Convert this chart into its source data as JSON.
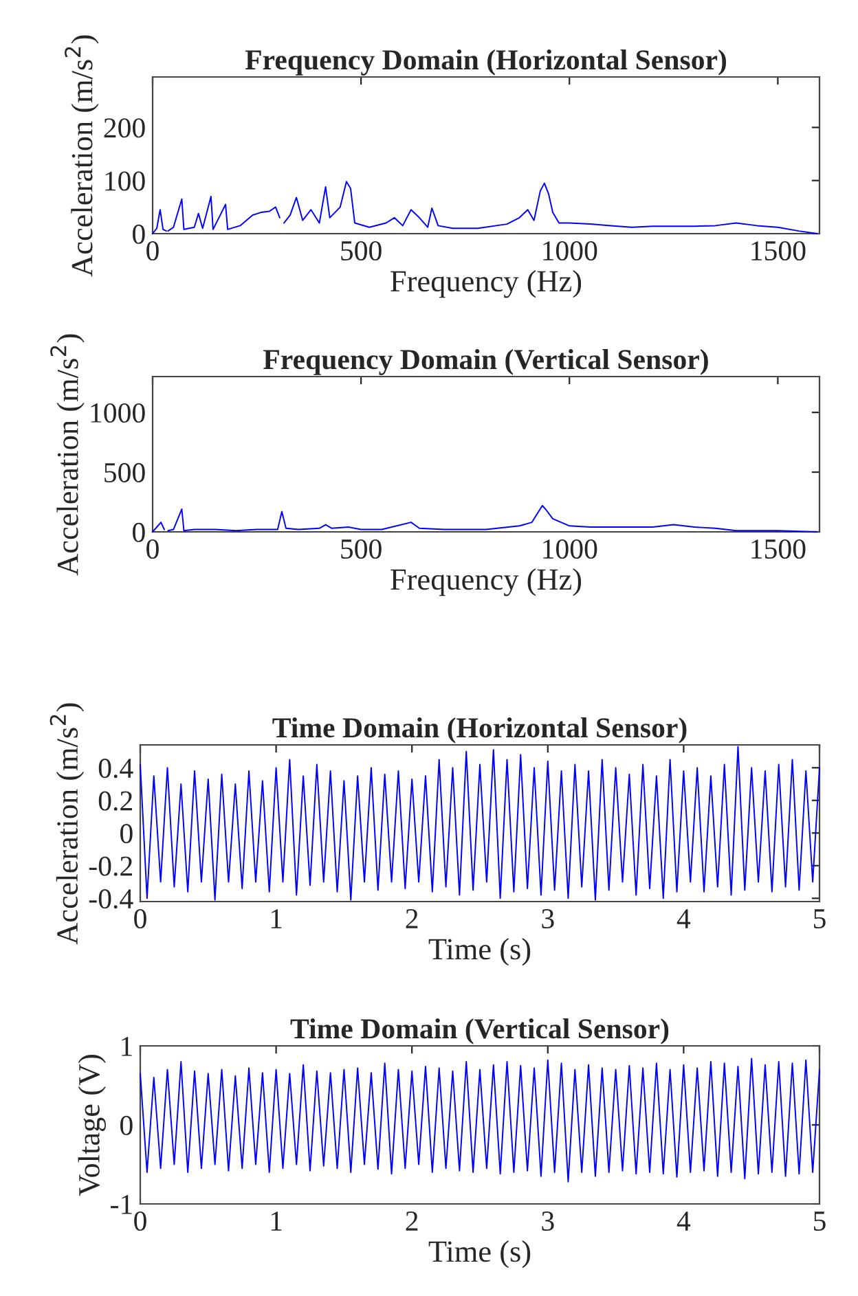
{
  "chart_data": [
    {
      "type": "line",
      "title": "Frequency Domain (Horizontal Sensor)",
      "xlabel": "Frequency (Hz)",
      "ylabel": "Acceleration (m/s$^{2}$)",
      "xlim": [
        0,
        1600
      ],
      "xticks": [
        0,
        500,
        1000,
        1500
      ],
      "ylim": [
        0,
        295
      ],
      "yticks": [
        0,
        100,
        200
      ],
      "grid": false,
      "legend": false,
      "series": [
        {
          "color": "#0000ff",
          "x": [
            0,
            10,
            18,
            25,
            33,
            35,
            37,
            50,
            70,
            75,
            100,
            110,
            120,
            140,
            145,
            175,
            180,
            210,
            240,
            260,
            280,
            295,
            305,
            310,
            315,
            330,
            345,
            360,
            380,
            400,
            415,
            425,
            450,
            465,
            475,
            485,
            520,
            560,
            580,
            600,
            620,
            640,
            660,
            670,
            685,
            720,
            780,
            850,
            880,
            900,
            915,
            930,
            940,
            950,
            960,
            975,
            1000,
            1050,
            1100,
            1150,
            1200,
            1250,
            1300,
            1350,
            1400,
            1450,
            1500,
            1550,
            1594
          ],
          "values": [
            0,
            10,
            45,
            8,
            5,
            null,
            5,
            12,
            65,
            8,
            12,
            38,
            10,
            70,
            8,
            55,
            8,
            15,
            35,
            40,
            42,
            50,
            30,
            null,
            20,
            35,
            68,
            25,
            45,
            20,
            88,
            30,
            50,
            98,
            85,
            20,
            12,
            20,
            30,
            15,
            45,
            30,
            12,
            48,
            15,
            10,
            10,
            18,
            30,
            45,
            25,
            80,
            95,
            75,
            40,
            20,
            20,
            18,
            15,
            12,
            14,
            14,
            14,
            15,
            20,
            15,
            12,
            5,
            0
          ]
        }
      ]
    },
    {
      "type": "line",
      "title": "Frequency Domain (Vertical Sensor)",
      "xlabel": "Frequency (Hz)",
      "ylabel": "Acceleration (m/s$^{2}$)",
      "xlim": [
        0,
        1600
      ],
      "xticks": [
        0,
        500,
        1000,
        1500
      ],
      "ylim": [
        0,
        1300
      ],
      "yticks": [
        0,
        500,
        1000
      ],
      "grid": false,
      "legend": false,
      "series": [
        {
          "color": "#0000ff",
          "x": [
            0,
            20,
            28,
            35,
            37,
            50,
            70,
            75,
            100,
            150,
            200,
            250,
            300,
            310,
            320,
            350,
            400,
            415,
            430,
            470,
            500,
            550,
            620,
            640,
            700,
            800,
            880,
            910,
            935,
            945,
            960,
            980,
            1000,
            1050,
            1100,
            1200,
            1250,
            1300,
            1350,
            1400,
            1500,
            1594
          ],
          "values": [
            0,
            80,
            20,
            null,
            10,
            20,
            190,
            10,
            20,
            20,
            10,
            20,
            20,
            170,
            30,
            20,
            30,
            60,
            30,
            40,
            20,
            20,
            80,
            30,
            20,
            20,
            50,
            80,
            220,
            180,
            110,
            80,
            50,
            40,
            40,
            40,
            60,
            40,
            30,
            10,
            10,
            0
          ]
        }
      ]
    },
    {
      "type": "line",
      "title": "Time Domain (Horizontal Sensor)",
      "xlabel": "Time (s)",
      "ylabel": "Acceleration (m/s$^{2}$)",
      "xlim": [
        0,
        5
      ],
      "xticks": [
        0,
        1,
        2,
        3,
        4,
        5
      ],
      "ylim": [
        -0.42,
        0.54
      ],
      "yticks": [
        -0.4,
        -0.2,
        0,
        0.2,
        0.4
      ],
      "grid": false,
      "legend": false,
      "series": [
        {
          "color": "#0000ff",
          "x": [
            0,
            0.05,
            0.1,
            0.15,
            0.2,
            0.25,
            0.3,
            0.35,
            0.4,
            0.45,
            0.5,
            0.55,
            0.6,
            0.65,
            0.7,
            0.75,
            0.8,
            0.85,
            0.9,
            0.95,
            1.0,
            1.05,
            1.1,
            1.15,
            1.2,
            1.25,
            1.3,
            1.35,
            1.4,
            1.45,
            1.5,
            1.55,
            1.6,
            1.65,
            1.7,
            1.75,
            1.8,
            1.85,
            1.9,
            1.95,
            2.0,
            2.05,
            2.1,
            2.15,
            2.2,
            2.25,
            2.3,
            2.35,
            2.4,
            2.45,
            2.5,
            2.55,
            2.6,
            2.65,
            2.7,
            2.75,
            2.8,
            2.85,
            2.9,
            2.95,
            3.0,
            3.05,
            3.1,
            3.15,
            3.2,
            3.25,
            3.3,
            3.35,
            3.4,
            3.45,
            3.5,
            3.55,
            3.6,
            3.65,
            3.7,
            3.75,
            3.8,
            3.85,
            3.9,
            3.95,
            4.0,
            4.05,
            4.1,
            4.15,
            4.2,
            4.25,
            4.3,
            4.35,
            4.4,
            4.45,
            4.5,
            4.55,
            4.6,
            4.65,
            4.7,
            4.75,
            4.8,
            4.85,
            4.9,
            4.95,
            5.0
          ],
          "values": [
            0.42,
            -0.4,
            0.35,
            -0.3,
            0.4,
            -0.33,
            0.3,
            -0.36,
            0.38,
            -0.3,
            0.33,
            -0.41,
            0.36,
            -0.3,
            0.3,
            -0.34,
            0.38,
            -0.3,
            0.32,
            -0.36,
            0.4,
            -0.3,
            0.45,
            -0.38,
            0.35,
            -0.32,
            0.42,
            -0.3,
            0.38,
            -0.36,
            0.32,
            -0.41,
            0.35,
            -0.3,
            0.4,
            -0.35,
            0.36,
            -0.3,
            0.38,
            -0.34,
            0.33,
            -0.3,
            0.35,
            -0.36,
            0.45,
            -0.33,
            0.4,
            -0.38,
            0.5,
            -0.35,
            0.42,
            -0.3,
            0.51,
            -0.4,
            0.45,
            -0.36,
            0.48,
            -0.34,
            0.4,
            -0.38,
            0.44,
            -0.35,
            0.38,
            -0.4,
            0.42,
            -0.33,
            0.38,
            -0.41,
            0.45,
            -0.35,
            0.4,
            -0.3,
            0.36,
            -0.38,
            0.42,
            -0.34,
            0.35,
            -0.4,
            0.45,
            -0.36,
            0.38,
            -0.3,
            0.4,
            -0.36,
            0.35,
            -0.33,
            0.42,
            -0.38,
            0.53,
            -0.35,
            0.4,
            -0.3,
            0.38,
            -0.36,
            0.42,
            -0.33,
            0.45,
            -0.35,
            0.38,
            -0.3,
            0.4
          ]
        }
      ]
    },
    {
      "type": "line",
      "title": "Time Domain (Vertical Sensor)",
      "xlabel": "Time (s)",
      "ylabel": "Voltage (V)",
      "xlim": [
        0,
        5
      ],
      "xticks": [
        0,
        1,
        2,
        3,
        4,
        5
      ],
      "ylim": [
        -1,
        1
      ],
      "yticks": [
        -1,
        0,
        1
      ],
      "grid": false,
      "legend": false,
      "series": [
        {
          "color": "#0000ff",
          "x": [
            0,
            0.05,
            0.1,
            0.15,
            0.2,
            0.25,
            0.3,
            0.35,
            0.4,
            0.45,
            0.5,
            0.55,
            0.6,
            0.65,
            0.7,
            0.75,
            0.8,
            0.85,
            0.9,
            0.95,
            1.0,
            1.05,
            1.1,
            1.15,
            1.2,
            1.25,
            1.3,
            1.35,
            1.4,
            1.45,
            1.5,
            1.55,
            1.6,
            1.65,
            1.7,
            1.75,
            1.8,
            1.85,
            1.9,
            1.95,
            2.0,
            2.05,
            2.1,
            2.15,
            2.2,
            2.25,
            2.3,
            2.35,
            2.4,
            2.45,
            2.5,
            2.55,
            2.6,
            2.65,
            2.7,
            2.75,
            2.8,
            2.85,
            2.9,
            2.95,
            3.0,
            3.05,
            3.1,
            3.15,
            3.2,
            3.25,
            3.3,
            3.35,
            3.4,
            3.45,
            3.5,
            3.55,
            3.6,
            3.65,
            3.7,
            3.75,
            3.8,
            3.85,
            3.9,
            3.95,
            4.0,
            4.05,
            4.1,
            4.15,
            4.2,
            4.25,
            4.3,
            4.35,
            4.4,
            4.45,
            4.5,
            4.55,
            4.6,
            4.65,
            4.7,
            4.75,
            4.8,
            4.85,
            4.9,
            4.95,
            5.0
          ],
          "values": [
            0.65,
            -0.6,
            0.6,
            -0.55,
            0.7,
            -0.5,
            0.8,
            -0.6,
            0.68,
            -0.55,
            0.65,
            -0.5,
            0.7,
            -0.58,
            0.62,
            -0.55,
            0.72,
            -0.5,
            0.66,
            -0.6,
            0.7,
            -0.55,
            0.65,
            -0.5,
            0.76,
            -0.58,
            0.68,
            -0.52,
            0.66,
            -0.55,
            0.7,
            -0.6,
            0.72,
            -0.5,
            0.66,
            -0.56,
            0.78,
            -0.62,
            0.7,
            -0.55,
            0.68,
            -0.5,
            0.74,
            -0.6,
            0.72,
            -0.55,
            0.68,
            -0.58,
            0.8,
            -0.6,
            0.7,
            -0.55,
            0.76,
            -0.62,
            0.8,
            -0.6,
            0.75,
            -0.58,
            0.72,
            -0.65,
            0.82,
            -0.6,
            0.78,
            -0.72,
            0.7,
            -0.6,
            0.76,
            -0.65,
            0.72,
            -0.6,
            0.7,
            -0.58,
            0.75,
            -0.62,
            0.72,
            -0.6,
            0.78,
            -0.62,
            0.7,
            -0.66,
            0.76,
            -0.6,
            0.72,
            -0.58,
            0.8,
            -0.65,
            0.78,
            -0.6,
            0.74,
            -0.68,
            0.84,
            -0.62,
            0.76,
            -0.6,
            0.8,
            -0.65,
            0.78,
            -0.62,
            0.82,
            -0.6,
            0.7
          ]
        }
      ]
    }
  ]
}
